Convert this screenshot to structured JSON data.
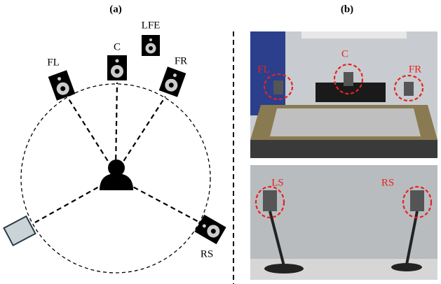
{
  "panel_a": {
    "label": "(a)",
    "speakers": [
      {
        "label": "FL"
      },
      {
        "label": "C"
      },
      {
        "label": "LFE"
      },
      {
        "label": "FR"
      },
      {
        "label": "RS"
      }
    ]
  },
  "panel_b": {
    "label": "(b)",
    "top_photo": {
      "labels": [
        "FL",
        "C",
        "FR"
      ]
    },
    "bottom_photo": {
      "labels": [
        "LS",
        "RS"
      ]
    }
  }
}
